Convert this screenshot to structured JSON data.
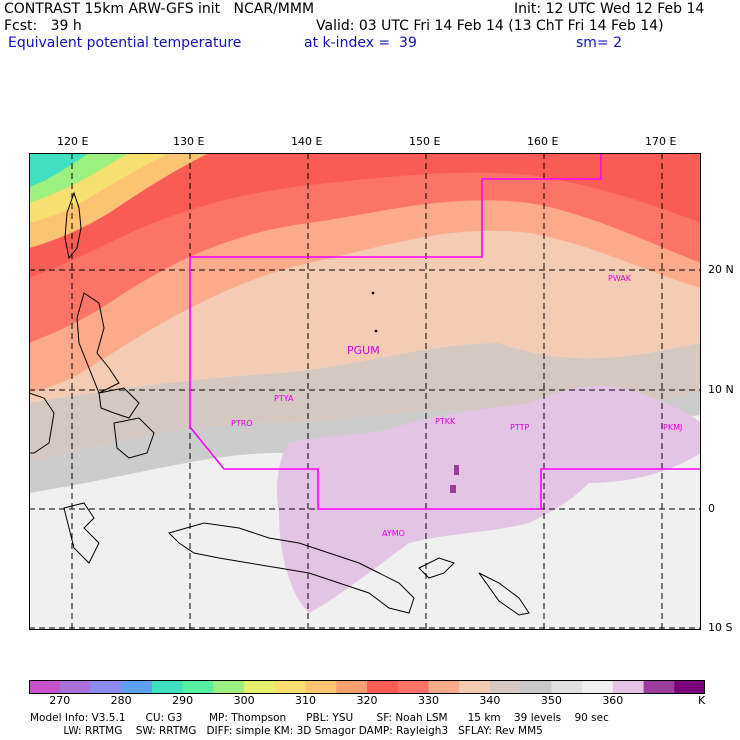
{
  "header": {
    "line1_left": "CONTRAST 15km ARW-GFS init   NCAR/MMM",
    "line1_right": "Init: 12 UTC Wed 12 Feb 14",
    "line2_left": "Fcst:   39 h",
    "line2_right": "Valid: 03 UTC Fri 14 Feb 14 (13 ChT Fri 14 Feb 14)",
    "line3_field": "Equivalent potential temperature",
    "line3_level": "at k-index =  39",
    "line3_smooth": "sm= 2"
  },
  "axes": {
    "lon_labels": [
      "120 E",
      "130 E",
      "140 E",
      "150 E",
      "160 E",
      "170 E"
    ],
    "lat_labels": [
      "20 N",
      "10 N",
      "0",
      "10 S"
    ]
  },
  "stations": [
    "PWAK",
    "PGUM",
    "PTYA",
    "PTRO",
    "PTKK",
    "PTTP",
    "PKMJ",
    "AYMO"
  ],
  "colorbar": {
    "labels": [
      "270",
      "280",
      "290",
      "300",
      "310",
      "320",
      "330",
      "340",
      "350",
      "360"
    ],
    "unit": "K",
    "colors": [
      "#c850c8",
      "#a870d8",
      "#8c8cf0",
      "#5ea0f0",
      "#40e0c0",
      "#58f0a0",
      "#9cf080",
      "#e6f06e",
      "#f8e070",
      "#fcc472",
      "#fca070",
      "#f85c54",
      "#fc7468",
      "#fcaa8c",
      "#f4ccb4",
      "#d4c8c0",
      "#c8c8c8",
      "#e0e0e0",
      "#f0f0f0",
      "#e4c4e4",
      "#9c3c9c",
      "#780078"
    ]
  },
  "footer": {
    "line1": "Model Info: V3.5.1      CU: G3        MP: Thompson      PBL: YSU       SF: Noah LSM      15 km    39 levels    90 sec",
    "line2": "          LW: RRTMG    SW: RRTMG   DIFF: simple KM: 3D Smagor DAMP: Rayleigh3   SFLAY: Rev MM5"
  }
}
